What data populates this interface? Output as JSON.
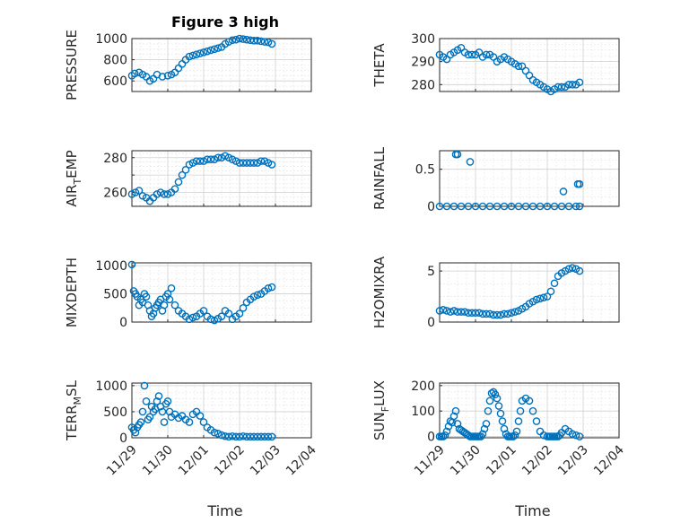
{
  "figure": {
    "title": "Figure 3 high",
    "xlabel": "Time"
  },
  "chart_data": [
    {
      "type": "scatter",
      "ylabel": "PRESSURE",
      "ylim": [
        500,
        1000
      ],
      "yticks": [
        600,
        800,
        1000
      ],
      "ytick_labels": [
        "600",
        "800",
        "1000"
      ],
      "xlim": [
        0,
        5
      ],
      "xticks": [
        0,
        1,
        2,
        3,
        4,
        5
      ],
      "xtick_labels": [
        "11/29",
        "11/30",
        "12/01",
        "12/02",
        "12/03",
        "12/04"
      ],
      "grid": "on",
      "x": [
        0.0,
        0.08,
        0.2,
        0.3,
        0.4,
        0.5,
        0.6,
        0.7,
        0.85,
        1.0,
        1.1,
        1.2,
        1.3,
        1.4,
        1.5,
        1.6,
        1.7,
        1.8,
        1.9,
        2.0,
        2.1,
        2.2,
        2.3,
        2.4,
        2.5,
        2.6,
        2.7,
        2.8,
        2.9,
        3.0,
        3.1,
        3.2,
        3.3,
        3.4,
        3.5,
        3.6,
        3.7,
        3.8,
        3.9
      ],
      "y": [
        650,
        670,
        680,
        660,
        640,
        600,
        620,
        660,
        640,
        650,
        660,
        680,
        720,
        760,
        800,
        830,
        840,
        850,
        860,
        870,
        880,
        890,
        900,
        910,
        920,
        950,
        970,
        985,
        990,
        1000,
        995,
        990,
        985,
        980,
        980,
        975,
        970,
        965,
        950
      ]
    },
    {
      "type": "scatter",
      "ylabel": "THETA",
      "ylim": [
        277,
        300
      ],
      "yticks": [
        280,
        290,
        300
      ],
      "ytick_labels": [
        "280",
        "290",
        "300"
      ],
      "xlim": [
        0,
        5
      ],
      "xticks": [
        0,
        1,
        2,
        3,
        4,
        5
      ],
      "xtick_labels": [
        "11/29",
        "11/30",
        "12/01",
        "12/02",
        "12/03",
        "12/04"
      ],
      "grid": "on",
      "x": [
        0.0,
        0.1,
        0.2,
        0.3,
        0.4,
        0.5,
        0.6,
        0.7,
        0.8,
        0.9,
        1.0,
        1.1,
        1.2,
        1.3,
        1.4,
        1.5,
        1.6,
        1.7,
        1.8,
        1.9,
        2.0,
        2.1,
        2.2,
        2.3,
        2.4,
        2.5,
        2.6,
        2.7,
        2.8,
        2.9,
        3.0,
        3.1,
        3.2,
        3.3,
        3.4,
        3.5,
        3.6,
        3.7,
        3.8,
        3.9
      ],
      "y": [
        293,
        292,
        291,
        293,
        294,
        295,
        296,
        294,
        293,
        293,
        293,
        294,
        292,
        293,
        293,
        292,
        290,
        291,
        292,
        291,
        290,
        289,
        288,
        288,
        286,
        284,
        282,
        281,
        280,
        279,
        278,
        277,
        278,
        279,
        279,
        279,
        280,
        280,
        280,
        281
      ]
    },
    {
      "type": "scatter",
      "ylabel": "AIR",
      "ylabel_sub": "T",
      "ylabel_tail": "EMP",
      "ylim": [
        252,
        284
      ],
      "yticks": [
        260,
        270,
        280
      ],
      "ytick_labels": [
        "260",
        "",
        "280"
      ],
      "xlim": [
        0,
        5
      ],
      "xticks": [
        0,
        1,
        2,
        3,
        4,
        5
      ],
      "xtick_labels": [
        "11/29",
        "11/30",
        "12/01",
        "12/02",
        "12/03",
        "12/04"
      ],
      "grid": "on",
      "x": [
        0.0,
        0.1,
        0.2,
        0.3,
        0.4,
        0.5,
        0.6,
        0.7,
        0.8,
        0.9,
        1.0,
        1.1,
        1.2,
        1.3,
        1.4,
        1.5,
        1.6,
        1.7,
        1.8,
        1.9,
        2.0,
        2.1,
        2.2,
        2.3,
        2.4,
        2.5,
        2.6,
        2.7,
        2.8,
        2.9,
        3.0,
        3.1,
        3.2,
        3.3,
        3.4,
        3.5,
        3.6,
        3.7,
        3.8,
        3.9
      ],
      "y": [
        259,
        260,
        261,
        258,
        257,
        255,
        257,
        259,
        260,
        259,
        259,
        260,
        262,
        266,
        270,
        273,
        276,
        277,
        278,
        278,
        278,
        279,
        279,
        279,
        280,
        280,
        281,
        280,
        279,
        278,
        277,
        277,
        277,
        277,
        277,
        277,
        278,
        278,
        277,
        276
      ]
    },
    {
      "type": "scatter",
      "ylabel": "RAINFALL",
      "ylim": [
        0,
        0.75
      ],
      "yticks": [
        0,
        0.5
      ],
      "ytick_labels": [
        "0",
        "0.5"
      ],
      "xlim": [
        0,
        5
      ],
      "xticks": [
        0,
        1,
        2,
        3,
        4,
        5
      ],
      "xtick_labels": [
        "11/29",
        "11/30",
        "12/01",
        "12/02",
        "12/03",
        "12/04"
      ],
      "grid": "on",
      "x": [
        0.0,
        0.2,
        0.4,
        0.6,
        0.8,
        1.0,
        1.2,
        1.4,
        1.6,
        1.8,
        2.0,
        2.2,
        2.4,
        2.6,
        2.8,
        3.0,
        3.2,
        3.4,
        3.6,
        3.8,
        3.9,
        0.45,
        0.5,
        0.85,
        3.45,
        3.85,
        3.9
      ],
      "y": [
        0,
        0,
        0,
        0,
        0,
        0,
        0,
        0,
        0,
        0,
        0,
        0,
        0,
        0,
        0,
        0,
        0,
        0,
        0,
        0,
        0,
        0.7,
        0.7,
        0.6,
        0.2,
        0.3,
        0.3
      ]
    },
    {
      "type": "scatter",
      "ylabel": "MIXDEPTH",
      "ylim": [
        0,
        1050
      ],
      "yticks": [
        0,
        500,
        1000
      ],
      "ytick_labels": [
        "0",
        "500",
        "1000"
      ],
      "xlim": [
        0,
        5
      ],
      "xticks": [
        0,
        1,
        2,
        3,
        4,
        5
      ],
      "xtick_labels": [
        "11/29",
        "11/30",
        "12/01",
        "12/02",
        "12/03",
        "12/04"
      ],
      "grid": "on",
      "x": [
        0.0,
        0.05,
        0.1,
        0.15,
        0.2,
        0.25,
        0.3,
        0.35,
        0.4,
        0.45,
        0.5,
        0.55,
        0.6,
        0.65,
        0.7,
        0.75,
        0.8,
        0.85,
        0.9,
        0.95,
        1.0,
        1.05,
        1.1,
        1.2,
        1.3,
        1.4,
        1.5,
        1.6,
        1.7,
        1.8,
        1.9,
        2.0,
        2.1,
        2.2,
        2.3,
        2.4,
        2.5,
        2.6,
        2.7,
        2.8,
        2.9,
        3.0,
        3.1,
        3.2,
        3.3,
        3.4,
        3.5,
        3.6,
        3.7,
        3.8,
        3.9
      ],
      "y": [
        1020,
        550,
        500,
        450,
        300,
        400,
        350,
        500,
        450,
        300,
        200,
        100,
        150,
        250,
        300,
        350,
        400,
        200,
        300,
        450,
        500,
        400,
        600,
        300,
        200,
        150,
        100,
        50,
        80,
        100,
        150,
        200,
        100,
        50,
        30,
        60,
        100,
        200,
        150,
        50,
        100,
        150,
        250,
        350,
        400,
        450,
        480,
        500,
        550,
        600,
        620
      ]
    },
    {
      "type": "scatter",
      "ylabel": "H2OMIXRA",
      "ylim": [
        0,
        5.8
      ],
      "yticks": [
        0,
        5
      ],
      "ytick_labels": [
        "0",
        "5"
      ],
      "xlim": [
        0,
        5
      ],
      "xticks": [
        0,
        1,
        2,
        3,
        4,
        5
      ],
      "xtick_labels": [
        "11/29",
        "11/30",
        "12/01",
        "12/02",
        "12/03",
        "12/04"
      ],
      "grid": "on",
      "x": [
        0.0,
        0.1,
        0.2,
        0.3,
        0.4,
        0.5,
        0.6,
        0.7,
        0.8,
        0.9,
        1.0,
        1.1,
        1.2,
        1.3,
        1.4,
        1.5,
        1.6,
        1.7,
        1.8,
        1.9,
        2.0,
        2.1,
        2.2,
        2.3,
        2.4,
        2.5,
        2.6,
        2.7,
        2.8,
        2.9,
        3.0,
        3.1,
        3.2,
        3.3,
        3.4,
        3.5,
        3.6,
        3.7,
        3.8,
        3.9
      ],
      "y": [
        1.1,
        1.2,
        1.1,
        1.0,
        1.1,
        1.0,
        1.0,
        1.0,
        0.9,
        0.9,
        0.9,
        0.9,
        0.8,
        0.8,
        0.8,
        0.7,
        0.7,
        0.7,
        0.8,
        0.8,
        0.9,
        1.0,
        1.1,
        1.3,
        1.5,
        1.8,
        2.0,
        2.2,
        2.3,
        2.4,
        2.5,
        3.0,
        3.8,
        4.5,
        4.8,
        5.0,
        5.2,
        5.3,
        5.2,
        5.0
      ]
    },
    {
      "type": "scatter",
      "ylabel": "TERR",
      "ylabel_sub": "M",
      "ylabel_tail": "SL",
      "ylim": [
        0,
        1050
      ],
      "yticks": [
        0,
        500,
        1000
      ],
      "ytick_labels": [
        "0",
        "500",
        "1000"
      ],
      "xlim": [
        0,
        5
      ],
      "xticks": [
        0,
        1,
        2,
        3,
        4,
        5
      ],
      "xtick_labels": [
        "11/29",
        "11/30",
        "12/01",
        "12/02",
        "12/03",
        "12/04"
      ],
      "grid": "on",
      "show_xticklabels": true,
      "x": [
        0.0,
        0.05,
        0.1,
        0.15,
        0.2,
        0.25,
        0.3,
        0.35,
        0.4,
        0.45,
        0.5,
        0.55,
        0.6,
        0.65,
        0.7,
        0.75,
        0.8,
        0.85,
        0.9,
        0.95,
        1.0,
        1.05,
        1.1,
        1.2,
        1.3,
        1.4,
        1.5,
        1.6,
        1.7,
        1.8,
        1.9,
        2.0,
        2.1,
        2.2,
        2.3,
        2.4,
        2.5,
        2.6,
        2.7,
        2.8,
        2.9,
        3.0,
        3.1,
        3.2,
        3.3,
        3.4,
        3.5,
        3.6,
        3.7,
        3.8,
        3.9
      ],
      "y": [
        200,
        150,
        100,
        200,
        250,
        300,
        500,
        1000,
        700,
        350,
        400,
        600,
        500,
        550,
        700,
        800,
        600,
        500,
        300,
        650,
        700,
        500,
        400,
        450,
        380,
        420,
        350,
        300,
        450,
        500,
        420,
        300,
        200,
        150,
        100,
        80,
        50,
        30,
        20,
        30,
        20,
        20,
        30,
        20,
        20,
        20,
        20,
        20,
        20,
        20,
        20
      ]
    },
    {
      "type": "scatter",
      "ylabel": "SUN",
      "ylabel_sub": "F",
      "ylabel_tail": "LUX",
      "ylim": [
        -5,
        210
      ],
      "yticks": [
        0,
        100,
        200
      ],
      "ytick_labels": [
        "0",
        "100",
        "200"
      ],
      "xlim": [
        0,
        5
      ],
      "xticks": [
        0,
        1,
        2,
        3,
        4,
        5
      ],
      "xtick_labels": [
        "11/29",
        "11/30",
        "12/01",
        "12/02",
        "12/03",
        "12/04"
      ],
      "grid": "on",
      "show_xticklabels": true,
      "x": [
        0.0,
        0.05,
        0.1,
        0.15,
        0.2,
        0.25,
        0.3,
        0.35,
        0.4,
        0.45,
        0.5,
        0.55,
        0.6,
        0.65,
        0.7,
        0.75,
        0.8,
        0.85,
        0.9,
        0.95,
        1.0,
        1.05,
        1.1,
        1.15,
        1.2,
        1.25,
        1.3,
        1.35,
        1.4,
        1.45,
        1.5,
        1.55,
        1.6,
        1.65,
        1.7,
        1.75,
        1.8,
        1.85,
        1.9,
        1.95,
        2.0,
        2.05,
        2.1,
        2.15,
        2.2,
        2.25,
        2.3,
        2.4,
        2.5,
        2.6,
        2.7,
        2.8,
        2.9,
        3.0,
        3.05,
        3.1,
        3.15,
        3.2,
        3.25,
        3.3,
        3.35,
        3.4,
        3.5,
        3.6,
        3.7,
        3.8,
        3.9
      ],
      "y": [
        0,
        0,
        0,
        5,
        20,
        40,
        60,
        55,
        80,
        100,
        50,
        30,
        25,
        20,
        15,
        10,
        5,
        0,
        0,
        0,
        0,
        0,
        0,
        0,
        10,
        30,
        50,
        100,
        140,
        170,
        175,
        165,
        150,
        120,
        90,
        60,
        30,
        10,
        0,
        0,
        0,
        0,
        5,
        20,
        60,
        100,
        140,
        150,
        140,
        100,
        60,
        20,
        5,
        0,
        0,
        0,
        0,
        0,
        0,
        0,
        5,
        15,
        30,
        20,
        10,
        5,
        0
      ]
    }
  ]
}
